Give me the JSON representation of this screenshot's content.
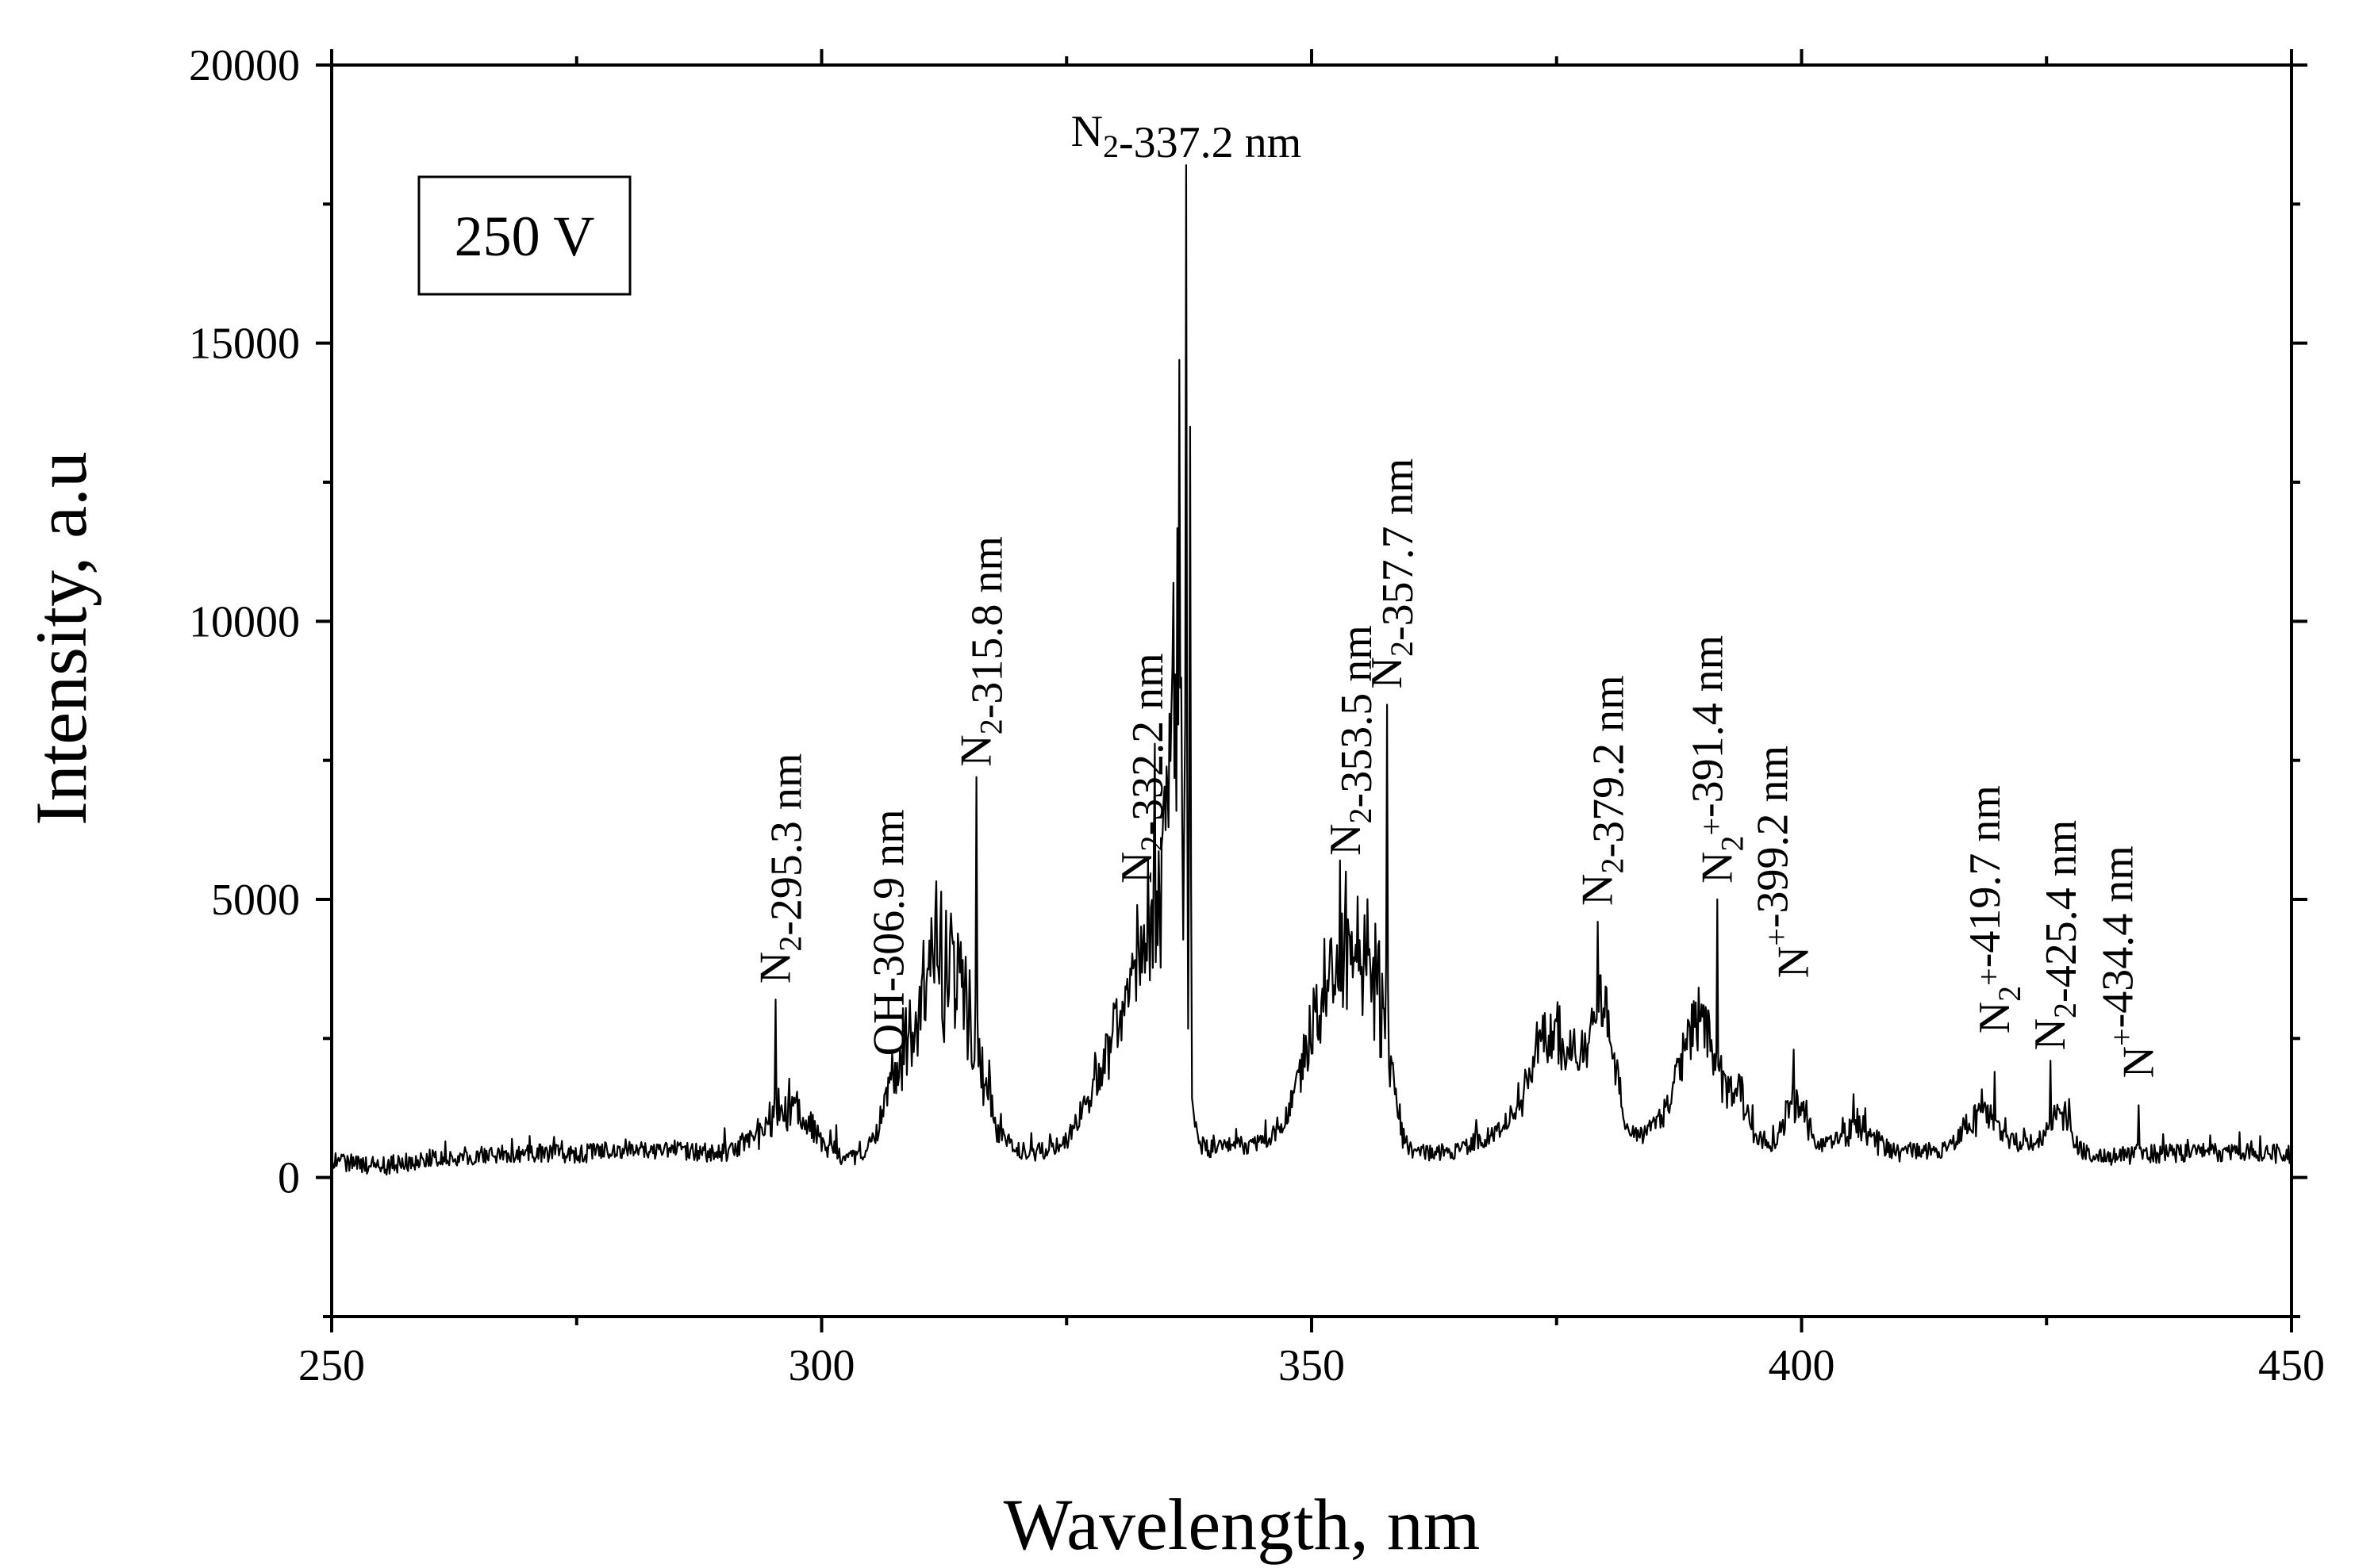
{
  "chart_data": {
    "type": "line",
    "title": "",
    "xlabel": "Wavelength, nm",
    "ylabel": "Intensity, a.u",
    "xlim": [
      250,
      450
    ],
    "ylim": [
      -2500,
      20000
    ],
    "xticks": [
      250,
      300,
      350,
      400,
      450
    ],
    "yticks": [
      0,
      5000,
      10000,
      15000,
      20000
    ],
    "grid": false,
    "legend": {
      "text": "250 V",
      "placement": "top-left"
    },
    "series": [
      {
        "name": "250 V",
        "color": "#000000",
        "baseline": [
          [
            250,
            300
          ],
          [
            255,
            200
          ],
          [
            260,
            350
          ],
          [
            265,
            400
          ],
          [
            270,
            450
          ],
          [
            275,
            420
          ],
          [
            280,
            520
          ],
          [
            285,
            480
          ],
          [
            290,
            430
          ],
          [
            295,
            350
          ],
          [
            300,
            300
          ],
          [
            305,
            330
          ],
          [
            310,
            420
          ],
          [
            315,
            600
          ],
          [
            320,
            420
          ],
          [
            325,
            520
          ],
          [
            330,
            800
          ],
          [
            335,
            1000
          ],
          [
            338,
            480
          ],
          [
            340,
            520
          ],
          [
            345,
            620
          ],
          [
            350,
            900
          ],
          [
            355,
            1200
          ],
          [
            358,
            450
          ],
          [
            360,
            380
          ],
          [
            365,
            500
          ],
          [
            370,
            900
          ],
          [
            375,
            1300
          ],
          [
            380,
            1400
          ],
          [
            382,
            600
          ],
          [
            385,
            800
          ],
          [
            390,
            1000
          ],
          [
            392,
            650
          ],
          [
            395,
            600
          ],
          [
            400,
            550
          ],
          [
            405,
            450
          ],
          [
            410,
            450
          ],
          [
            415,
            500
          ],
          [
            420,
            550
          ],
          [
            425,
            650
          ],
          [
            428,
            450
          ],
          [
            430,
            380
          ],
          [
            435,
            420
          ],
          [
            440,
            450
          ],
          [
            445,
            450
          ],
          [
            450,
            420
          ]
        ],
        "bands": [
          {
            "center": 296.5,
            "width": 2.5,
            "amplitude": 900
          },
          {
            "center": 307.5,
            "width": 1.2,
            "amplitude": 700
          },
          {
            "center": 310.5,
            "width": 2.5,
            "amplitude": 1700
          },
          {
            "center": 313.5,
            "width": 2.5,
            "amplitude": 2300
          },
          {
            "center": 328.5,
            "width": 2.0,
            "amplitude": 900
          },
          {
            "center": 331.5,
            "width": 1.5,
            "amplitude": 1800
          },
          {
            "center": 334.5,
            "width": 1.5,
            "amplitude": 3500
          },
          {
            "center": 336.3,
            "width": 0.7,
            "amplitude": 6500
          },
          {
            "center": 350.5,
            "width": 1.8,
            "amplitude": 1500
          },
          {
            "center": 353.5,
            "width": 1.8,
            "amplitude": 2100
          },
          {
            "center": 356.5,
            "width": 1.5,
            "amplitude": 2300
          },
          {
            "center": 374.5,
            "width": 2.0,
            "amplitude": 1400
          },
          {
            "center": 379.7,
            "width": 1.4,
            "amplitude": 1600
          },
          {
            "center": 389.5,
            "width": 2.0,
            "amplitude": 1700
          },
          {
            "center": 393.5,
            "width": 1.0,
            "amplitude": 700
          },
          {
            "center": 399.5,
            "width": 1.0,
            "amplitude": 900
          },
          {
            "center": 405.5,
            "width": 1.5,
            "amplitude": 500
          },
          {
            "center": 418.5,
            "width": 1.5,
            "amplitude": 700
          },
          {
            "center": 426.5,
            "width": 1.0,
            "amplitude": 600
          }
        ],
        "peaks": [
          {
            "x": 295.3,
            "y": 3200
          },
          {
            "x": 306.9,
            "y": 1700
          },
          {
            "x": 311.5,
            "y": 3500
          },
          {
            "x": 313.4,
            "y": 4200
          },
          {
            "x": 315.8,
            "y": 7200
          },
          {
            "x": 328.0,
            "y": 2100
          },
          {
            "x": 330.5,
            "y": 3000
          },
          {
            "x": 332.2,
            "y": 4900
          },
          {
            "x": 334.0,
            "y": 7800
          },
          {
            "x": 336.5,
            "y": 14700
          },
          {
            "x": 337.2,
            "y": 18200
          },
          {
            "x": 337.6,
            "y": 13500
          },
          {
            "x": 350.2,
            "y": 3400
          },
          {
            "x": 352.0,
            "y": 4300
          },
          {
            "x": 352.9,
            "y": 5700
          },
          {
            "x": 353.5,
            "y": 5500
          },
          {
            "x": 355.8,
            "y": 4000
          },
          {
            "x": 357.7,
            "y": 8500
          },
          {
            "x": 374.8,
            "y": 2800
          },
          {
            "x": 379.2,
            "y": 4600
          },
          {
            "x": 380.3,
            "y": 3000
          },
          {
            "x": 388.5,
            "y": 2800
          },
          {
            "x": 390.0,
            "y": 3100
          },
          {
            "x": 391.4,
            "y": 5000
          },
          {
            "x": 399.2,
            "y": 2300
          },
          {
            "x": 405.3,
            "y": 1500
          },
          {
            "x": 419.7,
            "y": 1900
          },
          {
            "x": 425.4,
            "y": 2100
          },
          {
            "x": 434.4,
            "y": 1300
          }
        ],
        "noise_amplitude": 170
      }
    ],
    "annotations": [
      {
        "x": 295.3,
        "y": 3400,
        "orientation": "vertical",
        "parts": [
          [
            "N",
            ""
          ],
          [
            "2",
            "sub"
          ],
          [
            "-295.3 nm",
            ""
          ]
        ]
      },
      {
        "x": 306.9,
        "y": 2100,
        "orientation": "vertical",
        "parts": [
          [
            "OH-306.9 nm",
            ""
          ]
        ]
      },
      {
        "x": 315.8,
        "y": 7300,
        "orientation": "vertical",
        "parts": [
          [
            "N",
            ""
          ],
          [
            "2",
            "sub"
          ],
          [
            "-315.8 nm",
            ""
          ]
        ]
      },
      {
        "x": 332.2,
        "y": 5200,
        "orientation": "vertical",
        "parts": [
          [
            "N",
            ""
          ],
          [
            "2",
            "sub"
          ],
          [
            "-332.2 nm",
            ""
          ]
        ]
      },
      {
        "x": 337.2,
        "y": 18400,
        "orientation": "horizontal",
        "parts": [
          [
            "N",
            ""
          ],
          [
            "2",
            "sub"
          ],
          [
            "-337.2 nm",
            ""
          ]
        ]
      },
      {
        "x": 353.5,
        "y": 5700,
        "orientation": "vertical",
        "parts": [
          [
            "N",
            ""
          ],
          [
            "2",
            "sub"
          ],
          [
            "-353.5 nm",
            ""
          ]
        ]
      },
      {
        "x": 357.7,
        "y": 8700,
        "orientation": "vertical",
        "parts": [
          [
            "N",
            ""
          ],
          [
            "2",
            "sub"
          ],
          [
            "-357.7 nm",
            ""
          ]
        ]
      },
      {
        "x": 379.2,
        "y": 4800,
        "orientation": "vertical",
        "parts": [
          [
            "N",
            ""
          ],
          [
            "2",
            "sub"
          ],
          [
            "-379.2 nm",
            ""
          ]
        ]
      },
      {
        "x": 391.4,
        "y": 5200,
        "orientation": "vertical",
        "parts": [
          [
            "N",
            ""
          ],
          [
            "2",
            "sub"
          ],
          [
            "+",
            "sup"
          ],
          [
            "-391.4 nm",
            ""
          ]
        ]
      },
      {
        "x": 399.2,
        "y": 3500,
        "orientation": "vertical",
        "parts": [
          [
            "N",
            ""
          ],
          [
            "+",
            "sup"
          ],
          [
            "-399.2 nm",
            ""
          ]
        ]
      },
      {
        "x": 419.7,
        "y": 2500,
        "orientation": "vertical",
        "parts": [
          [
            "N",
            ""
          ],
          [
            "2",
            "sub"
          ],
          [
            "+",
            "sup"
          ],
          [
            "-419.7 nm",
            ""
          ]
        ]
      },
      {
        "x": 425.4,
        "y": 2200,
        "orientation": "vertical",
        "parts": [
          [
            "N",
            ""
          ],
          [
            "2",
            "sub"
          ],
          [
            "-425.4 nm",
            ""
          ]
        ]
      },
      {
        "x": 434.4,
        "y": 1700,
        "orientation": "vertical",
        "parts": [
          [
            "N",
            ""
          ],
          [
            "+",
            "sup"
          ],
          [
            "-434.4 nm",
            ""
          ]
        ]
      }
    ]
  }
}
